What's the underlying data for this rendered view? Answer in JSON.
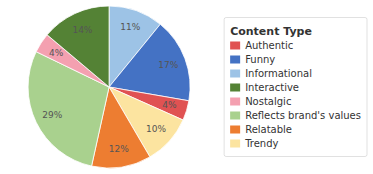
{
  "chart_data": {
    "type": "pie",
    "title": "Content Type",
    "categories": [
      "Informational",
      "Funny",
      "Authentic",
      "Trendy",
      "Relatable",
      "Reflects brand's values",
      "Nostalgic",
      "Interactive"
    ],
    "values": [
      11,
      17,
      4,
      10,
      12,
      29,
      4,
      14
    ],
    "value_labels": [
      "11%",
      "17%",
      "4%",
      "10%",
      "12%",
      "29%",
      "4%",
      "14%"
    ],
    "colors": [
      "#9dc3e6",
      "#4472c4",
      "#e05252",
      "#fce4a0",
      "#ed7d31",
      "#a9d18e",
      "#f4a0b0",
      "#548235"
    ],
    "data_labels": true,
    "legend": "right"
  }
}
